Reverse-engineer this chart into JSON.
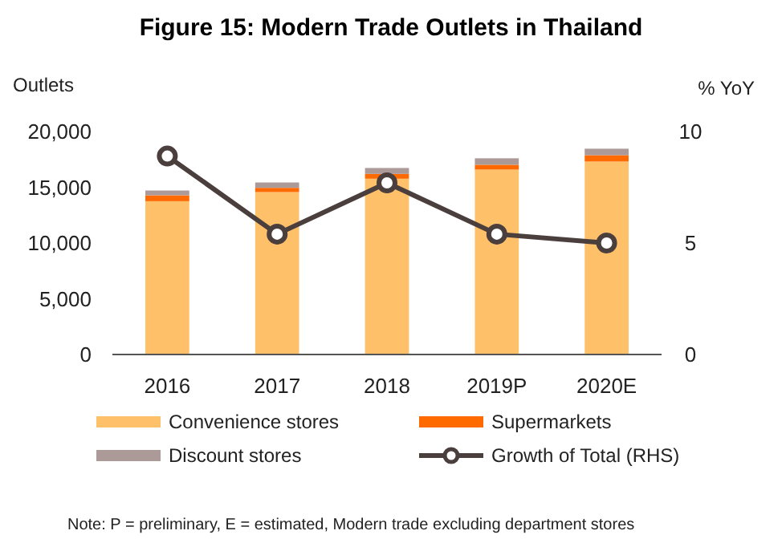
{
  "chart_data": {
    "type": "bar",
    "title": "Figure 15: Modern Trade Outlets in Thailand",
    "ylabel": "Outlets",
    "y2label": "% YoY",
    "categories": [
      "2016",
      "2017",
      "2018",
      "2019P",
      "2020E"
    ],
    "stacked": true,
    "series": [
      {
        "name": "Convenience stores",
        "color": "#ffc06a",
        "values": [
          13750,
          14570,
          15770,
          16590,
          17310
        ]
      },
      {
        "name": "Supermarkets",
        "color": "#ff6a00",
        "values": [
          530,
          380,
          430,
          430,
          570
        ]
      },
      {
        "name": "Discount stores",
        "color": "#ac9a98",
        "values": [
          430,
          480,
          530,
          580,
          580
        ]
      },
      {
        "name": "Growth of Total (RHS)",
        "type": "line",
        "axis": "y2",
        "color": "#4b3f3e",
        "marker": "circle",
        "values": [
          8.9,
          5.4,
          7.7,
          5.4,
          5.0
        ]
      }
    ],
    "ylim": [
      0,
      20000
    ],
    "yticks": [
      {
        "value": 0,
        "label": "0"
      },
      {
        "value": 5000,
        "label": "5,000"
      },
      {
        "value": 10000,
        "label": "10,000"
      },
      {
        "value": 15000,
        "label": "15,000"
      },
      {
        "value": 20000,
        "label": "20,000"
      }
    ],
    "y2lim": [
      0,
      10
    ],
    "y2ticks": [
      0,
      5,
      10
    ],
    "grid": false,
    "legend": "bottom",
    "annotations": [
      "Note: P = preliminary, E = estimated, Modern trade excluding department stores"
    ]
  }
}
